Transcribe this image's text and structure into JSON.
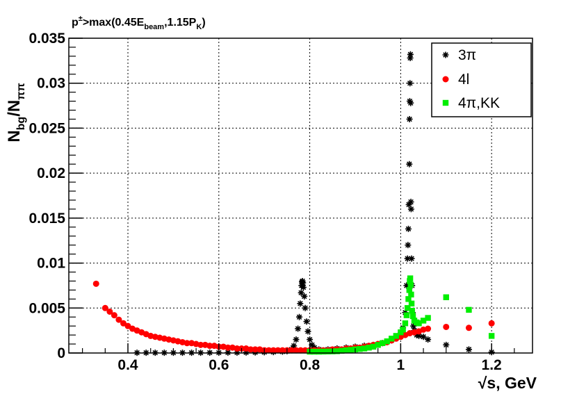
{
  "chart_data": {
    "type": "scatter",
    "annotation": {
      "pre": "p",
      "sup": "±",
      "mid1": ">max(0.45E",
      "sub1": "beam",
      "mid2": ",1.15P",
      "sub2": "K",
      "post": ")"
    },
    "ylabel": {
      "base": "N",
      "sub1": "bg",
      "slash": "/N",
      "sub2": "ππ"
    },
    "xlabel": "√s, GeV",
    "xlim": [
      0.27,
      1.29
    ],
    "ylim": [
      0,
      0.035
    ],
    "xticks": [
      0.4,
      0.6,
      0.8,
      1.0,
      1.2
    ],
    "xtick_labels": [
      "0.4",
      "0.6",
      "0.8",
      "1",
      "1.2"
    ],
    "yticks": [
      0,
      0.005,
      0.01,
      0.015,
      0.02,
      0.025,
      0.03,
      0.035
    ],
    "ytick_labels": [
      "0",
      "0.005",
      "0.01",
      "0.015",
      "0.02",
      "0.025",
      "0.03",
      "0.035"
    ],
    "grid": true,
    "legend_position": "top-right",
    "series": [
      {
        "name": "3π",
        "marker": "star",
        "color": "#000000",
        "points": [
          [
            0.42,
            3e-05
          ],
          [
            0.44,
            3e-05
          ],
          [
            0.46,
            3e-05
          ],
          [
            0.48,
            3e-05
          ],
          [
            0.5,
            3e-05
          ],
          [
            0.52,
            3e-05
          ],
          [
            0.54,
            3e-05
          ],
          [
            0.56,
            3e-05
          ],
          [
            0.58,
            4e-05
          ],
          [
            0.6,
            4e-05
          ],
          [
            0.62,
            5e-05
          ],
          [
            0.64,
            5e-05
          ],
          [
            0.66,
            6e-05
          ],
          [
            0.68,
            7e-05
          ],
          [
            0.7,
            9e-05
          ],
          [
            0.72,
            0.00011
          ],
          [
            0.74,
            0.00015
          ],
          [
            0.75,
            0.0002
          ],
          [
            0.76,
            0.0004
          ],
          [
            0.765,
            0.0008
          ],
          [
            0.77,
            0.0015
          ],
          [
            0.774,
            0.0027
          ],
          [
            0.777,
            0.004
          ],
          [
            0.779,
            0.0055
          ],
          [
            0.781,
            0.0067
          ],
          [
            0.782,
            0.0075
          ],
          [
            0.783,
            0.0079
          ],
          [
            0.784,
            0.008
          ],
          [
            0.785,
            0.0078
          ],
          [
            0.786,
            0.0073
          ],
          [
            0.788,
            0.0063
          ],
          [
            0.79,
            0.005
          ],
          [
            0.793,
            0.0035
          ],
          [
            0.796,
            0.0024
          ],
          [
            0.8,
            0.0015
          ],
          [
            0.805,
            0.0009
          ],
          [
            0.81,
            0.0006
          ],
          [
            0.82,
            0.0004
          ],
          [
            0.84,
            0.0004
          ],
          [
            0.86,
            0.0005
          ],
          [
            0.88,
            0.0006
          ],
          [
            0.9,
            0.0007
          ],
          [
            0.92,
            0.0008
          ],
          [
            0.94,
            0.0009
          ],
          [
            0.96,
            0.0011
          ],
          [
            0.98,
            0.0014
          ],
          [
            0.99,
            0.0017
          ],
          [
            1.0,
            0.0022
          ],
          [
            1.005,
            0.0028
          ],
          [
            1.01,
            0.0045
          ],
          [
            1.013,
            0.0075
          ],
          [
            1.015,
            0.0105
          ],
          [
            1.016,
            0.012
          ],
          [
            1.017,
            0.0138
          ],
          [
            1.018,
            0.0165
          ],
          [
            1.019,
            0.021
          ],
          [
            1.0195,
            0.026
          ],
          [
            1.02,
            0.028
          ],
          [
            1.0205,
            0.03
          ],
          [
            1.021,
            0.0328
          ],
          [
            1.0215,
            0.0332
          ],
          [
            1.022,
            0.0278
          ],
          [
            1.0225,
            0.0168
          ],
          [
            1.023,
            0.016
          ],
          [
            1.024,
            0.0105
          ],
          [
            1.025,
            0.0075
          ],
          [
            1.026,
            0.0045
          ],
          [
            1.028,
            0.003
          ],
          [
            1.03,
            0.0025
          ],
          [
            1.035,
            0.002
          ],
          [
            1.04,
            0.0019
          ],
          [
            1.05,
            0.0018
          ],
          [
            1.06,
            0.0015
          ],
          [
            1.1,
            0.0009
          ],
          [
            1.15,
            0.0004
          ],
          [
            1.2,
            0.0001
          ]
        ]
      },
      {
        "name": "4l",
        "marker": "circle",
        "color": "#ff0000",
        "points": [
          [
            0.33,
            0.0077
          ],
          [
            0.35,
            0.005
          ],
          [
            0.36,
            0.0046
          ],
          [
            0.37,
            0.0042
          ],
          [
            0.38,
            0.0037
          ],
          [
            0.39,
            0.0033
          ],
          [
            0.4,
            0.003
          ],
          [
            0.41,
            0.0027
          ],
          [
            0.42,
            0.0025
          ],
          [
            0.43,
            0.0023
          ],
          [
            0.44,
            0.0021
          ],
          [
            0.45,
            0.0019
          ],
          [
            0.46,
            0.0018
          ],
          [
            0.47,
            0.0017
          ],
          [
            0.48,
            0.0016
          ],
          [
            0.49,
            0.0015
          ],
          [
            0.5,
            0.0014
          ],
          [
            0.51,
            0.0013
          ],
          [
            0.52,
            0.0012
          ],
          [
            0.53,
            0.0011
          ],
          [
            0.54,
            0.0011
          ],
          [
            0.55,
            0.001
          ],
          [
            0.56,
            0.0009
          ],
          [
            0.57,
            0.0009
          ],
          [
            0.58,
            0.0008
          ],
          [
            0.59,
            0.0008
          ],
          [
            0.6,
            0.0007
          ],
          [
            0.61,
            0.0007
          ],
          [
            0.62,
            0.0006
          ],
          [
            0.63,
            0.0006
          ],
          [
            0.64,
            0.0005
          ],
          [
            0.65,
            0.0005
          ],
          [
            0.66,
            0.0005
          ],
          [
            0.67,
            0.0004
          ],
          [
            0.68,
            0.0004
          ],
          [
            0.69,
            0.0004
          ],
          [
            0.7,
            0.0003
          ],
          [
            0.71,
            0.0003
          ],
          [
            0.72,
            0.0003
          ],
          [
            0.73,
            0.0003
          ],
          [
            0.74,
            0.0003
          ],
          [
            0.75,
            0.0003
          ],
          [
            0.76,
            0.0003
          ],
          [
            0.77,
            0.0003
          ],
          [
            0.78,
            0.0003
          ],
          [
            0.79,
            0.0003
          ],
          [
            0.8,
            0.0003
          ],
          [
            0.81,
            0.0003
          ],
          [
            0.82,
            0.0003
          ],
          [
            0.83,
            0.0003
          ],
          [
            0.84,
            0.0003
          ],
          [
            0.85,
            0.0004
          ],
          [
            0.86,
            0.0004
          ],
          [
            0.87,
            0.0004
          ],
          [
            0.88,
            0.0005
          ],
          [
            0.89,
            0.0005
          ],
          [
            0.9,
            0.0006
          ],
          [
            0.91,
            0.0006
          ],
          [
            0.92,
            0.0007
          ],
          [
            0.93,
            0.0008
          ],
          [
            0.94,
            0.0009
          ],
          [
            0.95,
            0.001
          ],
          [
            0.96,
            0.0011
          ],
          [
            0.97,
            0.0012
          ],
          [
            0.98,
            0.0014
          ],
          [
            0.99,
            0.0016
          ],
          [
            1.0,
            0.0018
          ],
          [
            1.01,
            0.002
          ],
          [
            1.02,
            0.0022
          ],
          [
            1.03,
            0.0023
          ],
          [
            1.04,
            0.0024
          ],
          [
            1.05,
            0.0026
          ],
          [
            1.06,
            0.0027
          ],
          [
            1.1,
            0.0029
          ],
          [
            1.15,
            0.0028
          ],
          [
            1.2,
            0.0033
          ]
        ]
      },
      {
        "name": "4π,KK",
        "marker": "square",
        "color": "#00ee00",
        "points": [
          [
            0.8,
            0.00015
          ],
          [
            0.81,
            0.00015
          ],
          [
            0.82,
            0.00015
          ],
          [
            0.83,
            0.00016
          ],
          [
            0.84,
            0.00017
          ],
          [
            0.85,
            0.00018
          ],
          [
            0.86,
            0.0002
          ],
          [
            0.87,
            0.00025
          ],
          [
            0.88,
            0.0003
          ],
          [
            0.89,
            0.00035
          ],
          [
            0.9,
            0.0004
          ],
          [
            0.91,
            0.00045
          ],
          [
            0.92,
            0.0005
          ],
          [
            0.93,
            0.0006
          ],
          [
            0.94,
            0.0007
          ],
          [
            0.95,
            0.0009
          ],
          [
            0.96,
            0.0011
          ],
          [
            0.97,
            0.0013
          ],
          [
            0.98,
            0.0016
          ],
          [
            0.99,
            0.0019
          ],
          [
            1.0,
            0.0023
          ],
          [
            1.005,
            0.0026
          ],
          [
            1.01,
            0.0033
          ],
          [
            1.013,
            0.0042
          ],
          [
            1.015,
            0.005
          ],
          [
            1.017,
            0.006
          ],
          [
            1.019,
            0.007
          ],
          [
            1.02,
            0.008
          ],
          [
            1.021,
            0.0083
          ],
          [
            1.022,
            0.0076
          ],
          [
            1.023,
            0.0065
          ],
          [
            1.024,
            0.0055
          ],
          [
            1.025,
            0.0047
          ],
          [
            1.027,
            0.0041
          ],
          [
            1.03,
            0.0036
          ],
          [
            1.035,
            0.0034
          ],
          [
            1.04,
            0.0033
          ],
          [
            1.05,
            0.0036
          ],
          [
            1.06,
            0.0039
          ],
          [
            1.1,
            0.0062
          ],
          [
            1.15,
            0.0048
          ],
          [
            1.2,
            0.0019
          ]
        ]
      }
    ]
  }
}
